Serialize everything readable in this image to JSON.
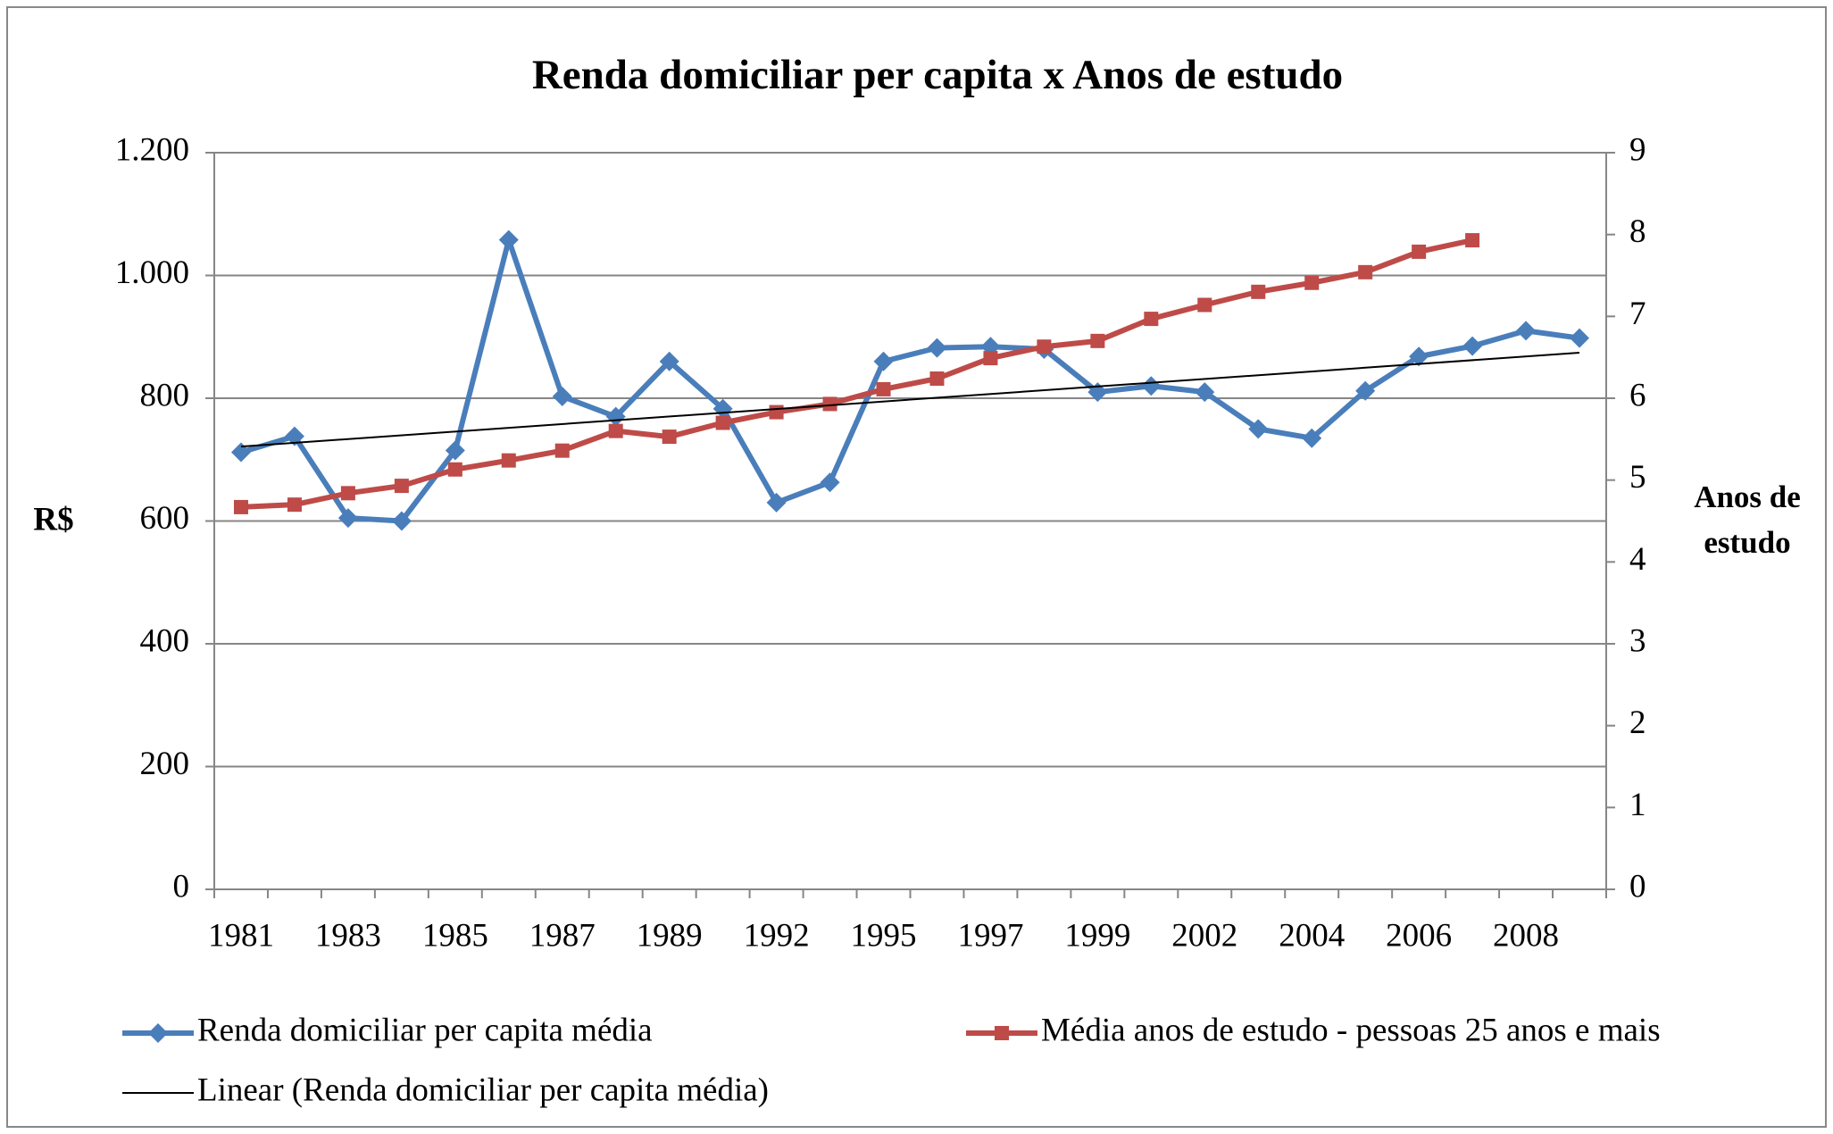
{
  "chart_data": {
    "type": "line",
    "title": "Renda domiciliar per capita x Anos de estudo",
    "ylabel": "R$",
    "y2label": [
      "Anos de",
      "estudo"
    ],
    "categories": [
      "1981",
      null,
      "1983",
      null,
      "1985",
      null,
      "1987",
      null,
      "1989",
      null,
      "1992",
      null,
      "1995",
      null,
      "1997",
      null,
      "1999",
      null,
      "2002",
      null,
      "2004",
      null,
      "2006",
      null,
      "2008",
      null
    ],
    "series": [
      {
        "name": "Renda domiciliar per capita média",
        "color": "#4a7ebb",
        "marker": "diamond",
        "values": [
          712,
          738,
          605,
          600,
          715,
          1058,
          803,
          770,
          860,
          783,
          630,
          663,
          860,
          882,
          884,
          880,
          810,
          820,
          810,
          750,
          735,
          812,
          868,
          885,
          910,
          898
        ]
      },
      {
        "name": "Média anos de estudo - pessoas 25 anos e mais",
        "color": "#be4b48",
        "marker": "square",
        "axis": "y2",
        "values": [
          4.67,
          4.7,
          4.84,
          4.93,
          5.13,
          5.24,
          5.36,
          5.6,
          5.53,
          5.7,
          5.83,
          5.93,
          6.11,
          6.24,
          6.49,
          6.63,
          6.7,
          6.97,
          7.14,
          7.3,
          7.41,
          7.54,
          7.79,
          7.93,
          null,
          null
        ]
      }
    ],
    "trendline": {
      "name": "Linear (Renda domiciliar per capita média)",
      "color": "#000000",
      "series": 0
    },
    "ylim": [
      0,
      1200
    ],
    "yticks": [
      0,
      200,
      400,
      600,
      800,
      {
        "value": 1000,
        "label": "1.000"
      },
      {
        "value": 1200,
        "label": "1.200"
      }
    ],
    "y2lim": [
      0,
      9
    ],
    "y2ticks": [
      0,
      1,
      2,
      3,
      4,
      5,
      6,
      7,
      8,
      9
    ],
    "grid": true
  }
}
